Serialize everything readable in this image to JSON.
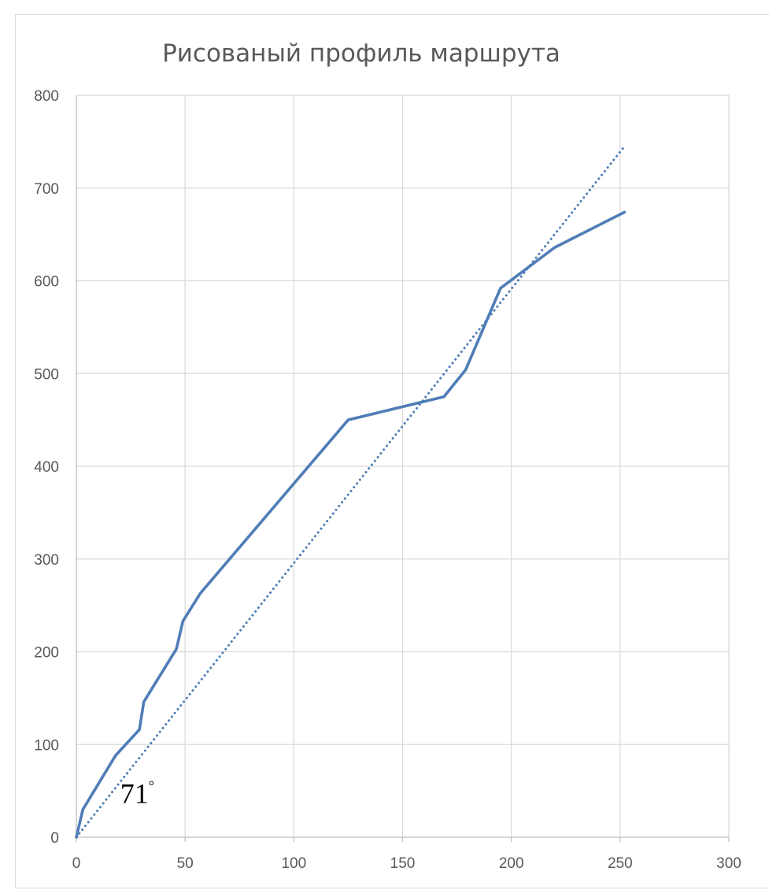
{
  "chart_data": {
    "type": "line",
    "title": "Рисованый профиль маршрута",
    "xlabel": "",
    "ylabel": "",
    "xlim": [
      0,
      300
    ],
    "ylim": [
      0,
      800
    ],
    "x_ticks": [
      "0",
      "50",
      "100",
      "150",
      "200",
      "250",
      "300"
    ],
    "y_ticks": [
      "0",
      "100",
      "200",
      "300",
      "400",
      "500",
      "600",
      "700",
      "800"
    ],
    "grid": true,
    "legend": "none",
    "series": [
      {
        "style": "solid",
        "color": "#4f7db7",
        "points": [
          [
            0,
            0
          ],
          [
            3,
            30
          ],
          [
            18,
            88
          ],
          [
            29,
            116
          ],
          [
            31,
            146
          ],
          [
            46,
            203
          ],
          [
            49,
            233
          ],
          [
            57,
            263
          ],
          [
            125,
            450
          ],
          [
            169,
            475
          ],
          [
            179,
            504
          ],
          [
            195,
            592
          ],
          [
            220,
            636
          ],
          [
            252,
            674
          ]
        ]
      },
      {
        "style": "dotted",
        "trendline": "linear",
        "color": "#4f7db7",
        "points": [
          [
            0,
            0
          ],
          [
            252,
            745
          ]
        ]
      }
    ],
    "annotations": [
      {
        "text": "71",
        "superscript": "°",
        "x": 28,
        "y": 37
      }
    ]
  }
}
